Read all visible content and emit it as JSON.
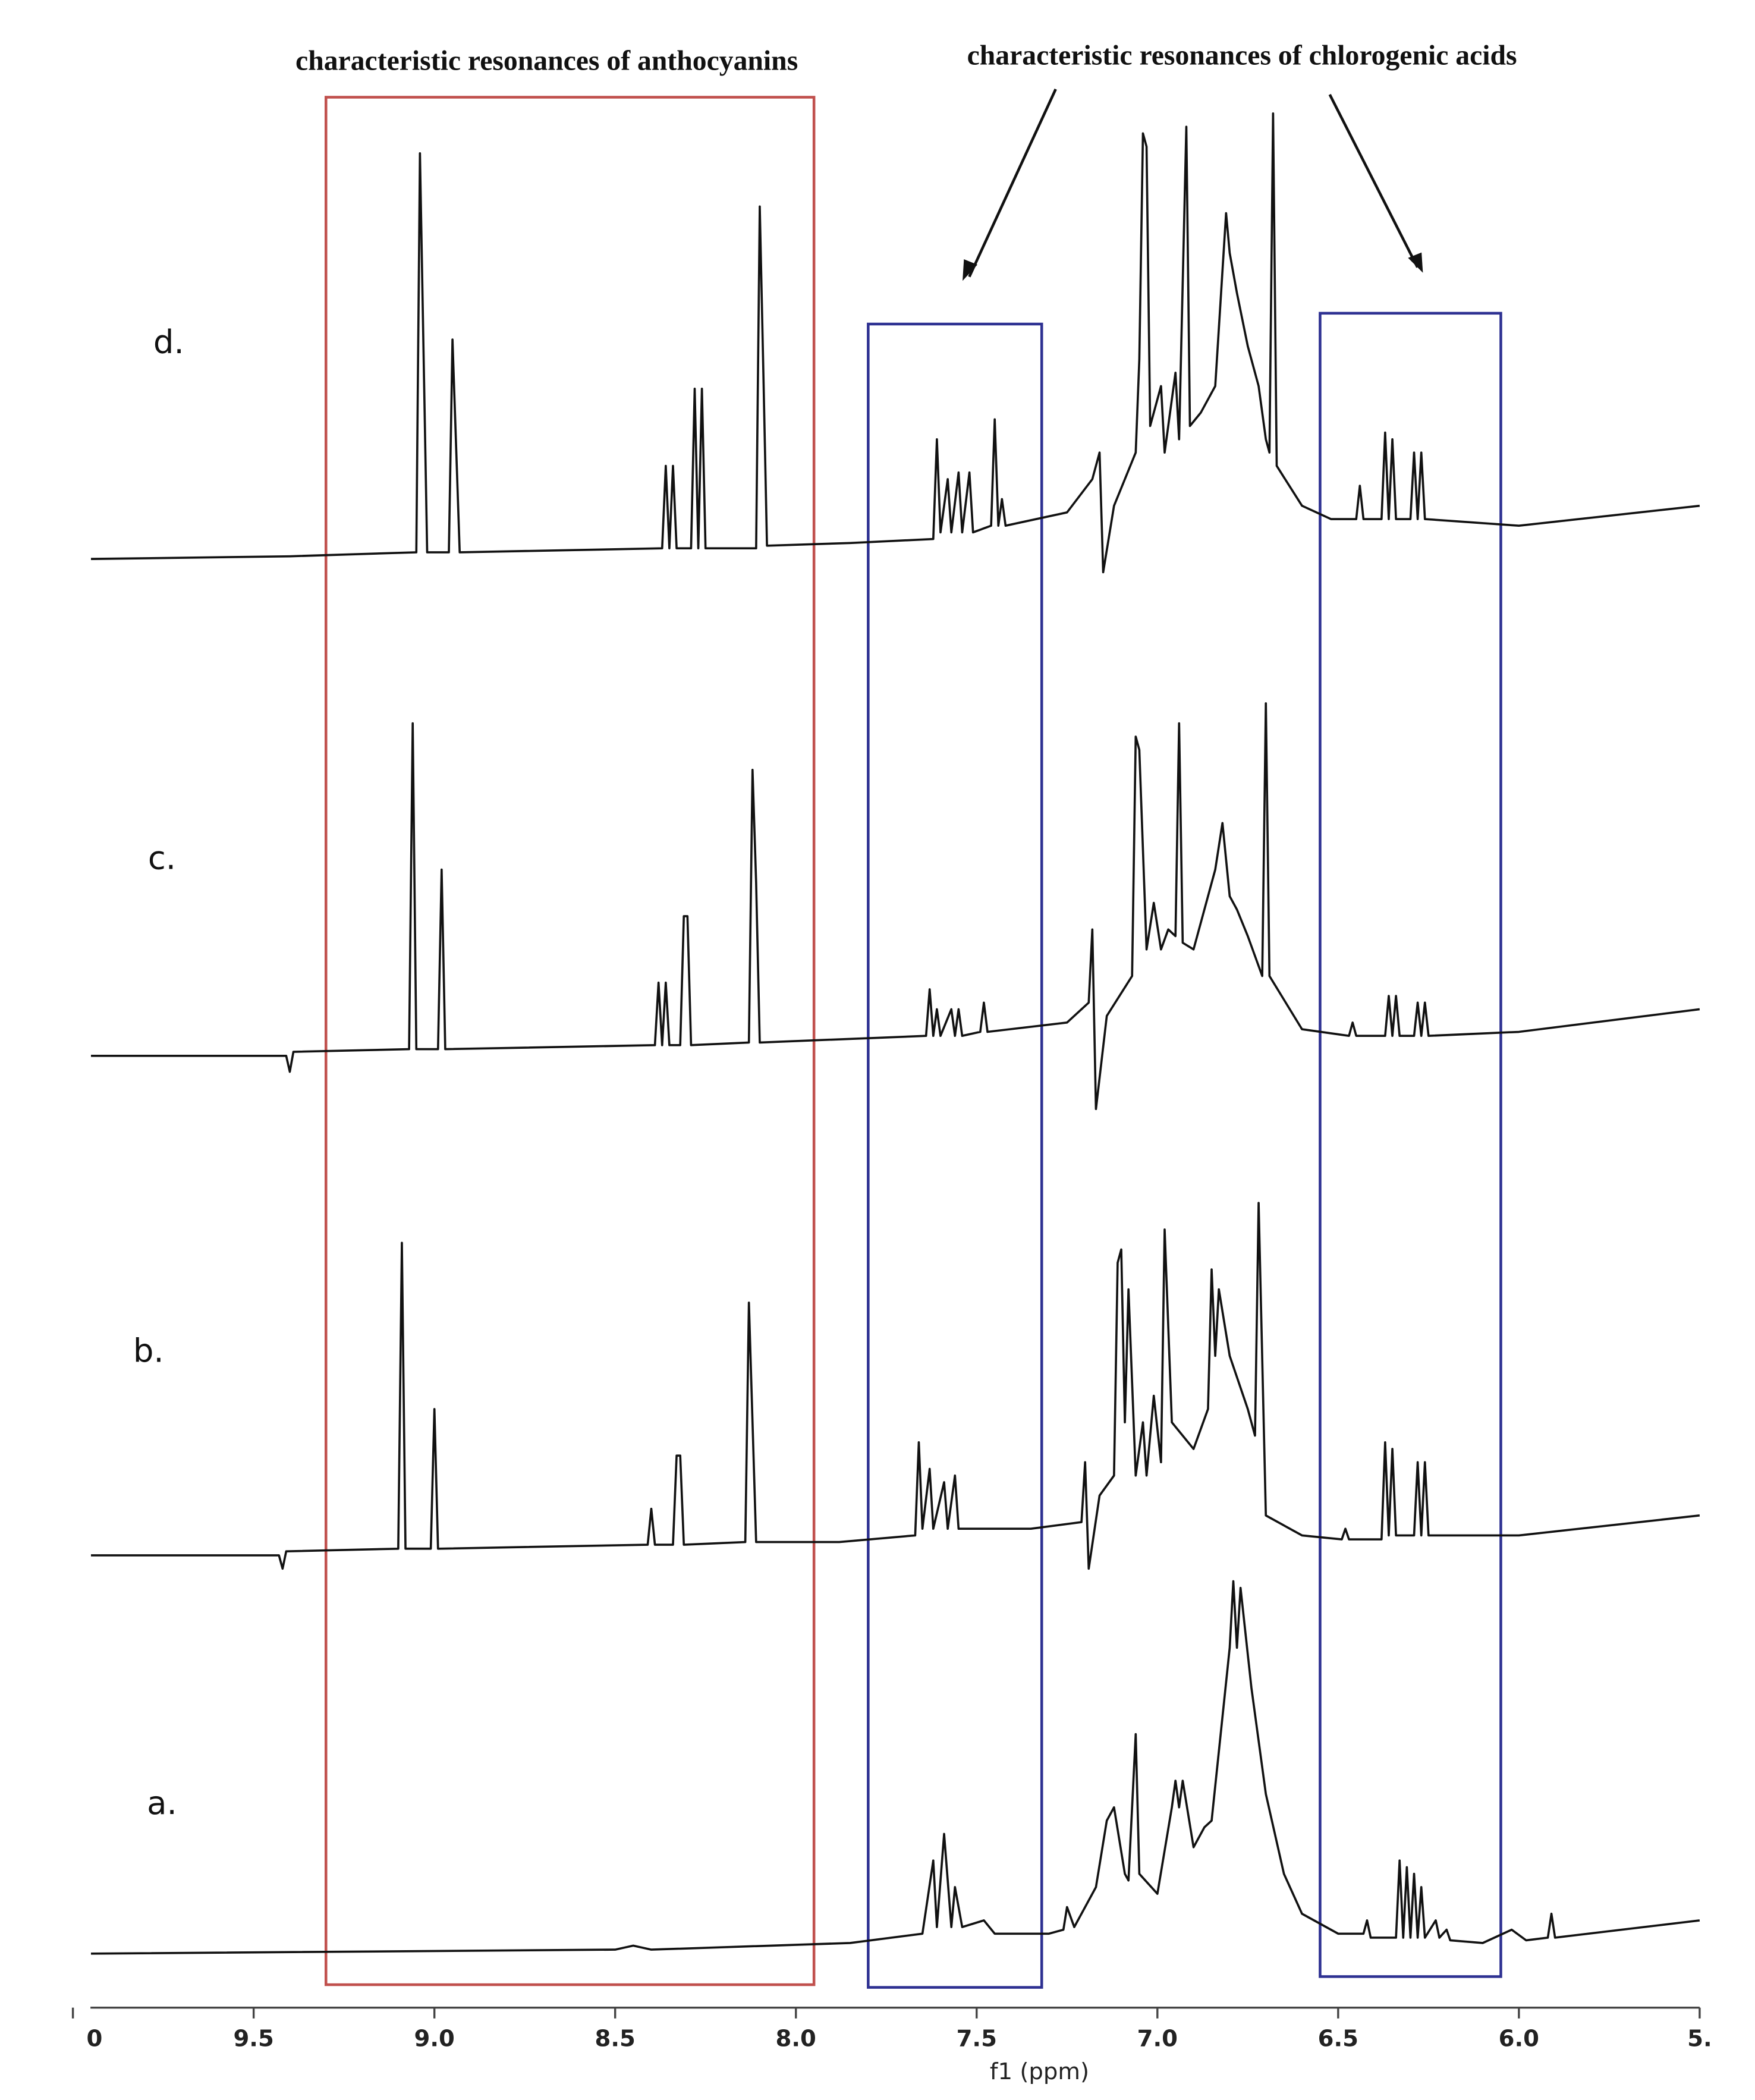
{
  "chart_data": {
    "type": "line",
    "x_label": "f1 (ppm)",
    "xlim": [
      10,
      5.5
    ],
    "xticks": [
      {
        "value": 10,
        "label": "0"
      },
      9.5,
      {
        "value": 9,
        "label": "9.0"
      },
      8.5,
      {
        "value": 8,
        "label": "8.0"
      },
      7.5,
      {
        "value": 7,
        "label": "7.0"
      },
      6.5,
      {
        "value": 6,
        "label": "6.0"
      },
      {
        "value": 5.5,
        "label": "5."
      }
    ],
    "annotations": [
      {
        "text": "characteristic resonances of anthocyanins",
        "color": "#c0504d",
        "regions": [
          [
            9.3,
            7.95
          ]
        ]
      },
      {
        "text": "characteristic resonances of chlorogenic acids",
        "color": "#2e3192",
        "regions": [
          [
            7.8,
            7.32
          ],
          [
            6.55,
            6.05
          ]
        ]
      }
    ],
    "series": [
      {
        "name": "d.",
        "color": "#111111",
        "x": [
          9.95,
          9.4,
          9.05,
          9.04,
          9.02,
          8.96,
          8.95,
          8.93,
          8.37,
          8.36,
          8.35,
          8.34,
          8.33,
          8.29,
          8.28,
          8.27,
          8.26,
          8.25,
          8.11,
          8.1,
          8.09,
          8.08,
          7.85,
          7.62,
          7.61,
          7.6,
          7.58,
          7.57,
          7.55,
          7.54,
          7.52,
          7.51,
          7.46,
          7.45,
          7.44,
          7.43,
          7.42,
          7.25,
          7.18,
          7.16,
          7.15,
          7.12,
          7.06,
          7.05,
          7.04,
          7.03,
          7.02,
          6.99,
          6.98,
          6.95,
          6.94,
          6.92,
          6.91,
          6.88,
          6.84,
          6.81,
          6.8,
          6.78,
          6.75,
          6.72,
          6.7,
          6.69,
          6.68,
          6.67,
          6.6,
          6.52,
          6.45,
          6.44,
          6.43,
          6.38,
          6.37,
          6.36,
          6.35,
          6.34,
          6.3,
          6.29,
          6.28,
          6.27,
          6.26,
          6.0,
          5.5
        ],
        "values": [
          0,
          2,
          5,
          305,
          5,
          5,
          165,
          5,
          8,
          70,
          8,
          70,
          8,
          8,
          128,
          8,
          128,
          8,
          8,
          265,
          140,
          10,
          12,
          15,
          90,
          20,
          60,
          20,
          65,
          20,
          65,
          20,
          25,
          105,
          25,
          45,
          25,
          35,
          60,
          80,
          -10,
          40,
          80,
          150,
          320,
          310,
          100,
          130,
          80,
          140,
          90,
          325,
          100,
          110,
          130,
          260,
          230,
          200,
          160,
          130,
          90,
          80,
          335,
          70,
          40,
          30,
          30,
          55,
          30,
          30,
          95,
          30,
          90,
          30,
          30,
          80,
          30,
          80,
          30,
          25,
          40
        ]
      },
      {
        "name": "c.",
        "color": "#111111",
        "x": [
          9.95,
          9.41,
          9.4,
          9.39,
          9.07,
          9.06,
          9.05,
          8.99,
          8.98,
          8.97,
          8.39,
          8.38,
          8.37,
          8.36,
          8.35,
          8.32,
          8.31,
          8.3,
          8.29,
          8.13,
          8.12,
          8.11,
          8.1,
          7.64,
          7.63,
          7.62,
          7.61,
          7.6,
          7.57,
          7.56,
          7.55,
          7.54,
          7.49,
          7.48,
          7.47,
          7.25,
          7.19,
          7.18,
          7.17,
          7.14,
          7.07,
          7.06,
          7.05,
          7.03,
          7.01,
          6.99,
          6.97,
          6.95,
          6.94,
          6.93,
          6.9,
          6.84,
          6.82,
          6.8,
          6.78,
          6.75,
          6.71,
          6.7,
          6.69,
          6.6,
          6.47,
          6.46,
          6.45,
          6.37,
          6.36,
          6.35,
          6.34,
          6.33,
          6.29,
          6.28,
          6.27,
          6.26,
          6.25,
          6.0,
          5.5
        ],
        "values": [
          0,
          0,
          -12,
          3,
          5,
          250,
          5,
          5,
          140,
          5,
          8,
          55,
          8,
          55,
          8,
          8,
          105,
          105,
          8,
          10,
          215,
          130,
          10,
          15,
          50,
          15,
          35,
          15,
          35,
          15,
          35,
          15,
          18,
          40,
          18,
          25,
          40,
          95,
          -40,
          30,
          60,
          240,
          230,
          80,
          115,
          80,
          95,
          90,
          250,
          85,
          80,
          140,
          175,
          120,
          110,
          90,
          60,
          265,
          60,
          20,
          15,
          25,
          15,
          15,
          45,
          15,
          45,
          15,
          15,
          40,
          15,
          40,
          15,
          18,
          35
        ]
      },
      {
        "name": "b.",
        "color": "#111111",
        "x": [
          9.95,
          9.43,
          9.42,
          9.41,
          9.1,
          9.09,
          9.08,
          9.01,
          9.0,
          8.99,
          8.41,
          8.4,
          8.39,
          8.34,
          8.33,
          8.32,
          8.31,
          8.14,
          8.13,
          8.12,
          8.11,
          7.88,
          7.67,
          7.66,
          7.65,
          7.63,
          7.62,
          7.59,
          7.58,
          7.56,
          7.55,
          7.35,
          7.21,
          7.2,
          7.19,
          7.16,
          7.12,
          7.11,
          7.1,
          7.09,
          7.08,
          7.06,
          7.04,
          7.03,
          7.01,
          6.99,
          6.98,
          6.96,
          6.9,
          6.86,
          6.85,
          6.84,
          6.83,
          6.8,
          6.75,
          6.73,
          6.72,
          6.7,
          6.6,
          6.49,
          6.48,
          6.47,
          6.38,
          6.37,
          6.36,
          6.35,
          6.34,
          6.29,
          6.28,
          6.27,
          6.26,
          6.25,
          6.0,
          5.5
        ],
        "values": [
          0,
          0,
          -10,
          3,
          5,
          235,
          5,
          5,
          110,
          5,
          8,
          35,
          8,
          8,
          75,
          75,
          8,
          10,
          190,
          100,
          10,
          10,
          15,
          85,
          20,
          65,
          20,
          55,
          20,
          60,
          20,
          20,
          25,
          70,
          -10,
          45,
          60,
          220,
          230,
          100,
          200,
          60,
          100,
          60,
          120,
          70,
          245,
          100,
          80,
          110,
          215,
          150,
          200,
          150,
          110,
          90,
          265,
          30,
          15,
          12,
          20,
          12,
          12,
          85,
          15,
          80,
          15,
          15,
          70,
          15,
          70,
          15,
          15,
          30
        ]
      },
      {
        "name": "a.",
        "color": "#111111",
        "x": [
          9.95,
          8.5,
          8.45,
          8.4,
          7.85,
          7.65,
          7.62,
          7.61,
          7.59,
          7.57,
          7.56,
          7.54,
          7.48,
          7.45,
          7.3,
          7.26,
          7.25,
          7.23,
          7.17,
          7.14,
          7.12,
          7.09,
          7.08,
          7.06,
          7.05,
          7.0,
          6.96,
          6.95,
          6.94,
          6.93,
          6.9,
          6.88,
          6.87,
          6.85,
          6.8,
          6.79,
          6.78,
          6.77,
          6.74,
          6.7,
          6.65,
          6.6,
          6.5,
          6.43,
          6.42,
          6.41,
          6.34,
          6.33,
          6.32,
          6.31,
          6.3,
          6.29,
          6.28,
          6.27,
          6.26,
          6.23,
          6.22,
          6.2,
          6.19,
          6.1,
          6.02,
          5.98,
          5.92,
          5.91,
          5.9,
          5.5
        ],
        "values": [
          0,
          3,
          6,
          3,
          8,
          15,
          70,
          20,
          90,
          20,
          50,
          20,
          25,
          15,
          15,
          18,
          35,
          20,
          50,
          100,
          110,
          60,
          55,
          165,
          60,
          45,
          110,
          130,
          110,
          130,
          80,
          90,
          95,
          100,
          230,
          280,
          230,
          275,
          200,
          120,
          60,
          30,
          15,
          15,
          25,
          12,
          12,
          70,
          12,
          65,
          12,
          60,
          12,
          50,
          12,
          25,
          12,
          18,
          10,
          8,
          18,
          10,
          12,
          30,
          12,
          25
        ]
      }
    ]
  }
}
